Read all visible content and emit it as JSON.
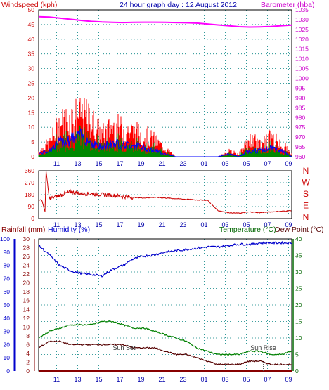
{
  "header": {
    "windspeed_label": "Windspeed (kph)",
    "title": "24 hour graph day : 12 August 2012",
    "barometer_label": "Barometer (hba)"
  },
  "colors": {
    "gust": "#ff0000",
    "avg_wind": "#0000ff",
    "wind_green": "#008800",
    "barometer": "#ff00ff",
    "direction": "#cc0000",
    "humidity": "#0000cc",
    "temperature": "#008000",
    "dewpoint": "#550000",
    "rain": "#880000",
    "grid": "#008080",
    "axis_red": "#cc0000",
    "axis_magenta": "#cc00cc",
    "axis_blue": "#0000cc",
    "axis_green": "#006600"
  },
  "x_ticks": [
    "11",
    "13",
    "15",
    "17",
    "19",
    "21",
    "23",
    "01",
    "03",
    "05",
    "07",
    "09"
  ],
  "chart_data": [
    {
      "type": "line",
      "name": "wind-barometer",
      "title": "24 hour graph day : 12 August 2012",
      "ylabel": "Windspeed (kph)",
      "y2label": "Barometer (hba)",
      "ylim": [
        0,
        50
      ],
      "y2lim": [
        960,
        1035
      ],
      "yticks": [
        0,
        5,
        10,
        15,
        20,
        25,
        30,
        35,
        40,
        45,
        50
      ],
      "y2ticks": [
        960,
        965,
        970,
        975,
        980,
        985,
        990,
        995,
        1000,
        1005,
        1010,
        1015,
        1020,
        1025,
        1030,
        1035
      ],
      "x_hours": [
        0,
        1,
        2,
        3,
        4,
        5,
        6,
        7,
        8,
        9,
        10,
        11,
        12,
        13,
        14,
        15,
        16,
        17,
        18,
        19,
        20,
        21,
        22,
        23,
        24
      ],
      "barometer": [
        1031.5,
        1031.3,
        1030.8,
        1030.2,
        1029.6,
        1029.1,
        1028.8,
        1028.6,
        1028.5,
        1028.6,
        1028.7,
        1028.7,
        1028.6,
        1028.5,
        1028.4,
        1028.2,
        1027.8,
        1027.3,
        1026.9,
        1026.4,
        1026.2,
        1026.3,
        1026.5,
        1026.9,
        1027.2
      ],
      "gust": [
        2,
        5,
        12,
        14,
        16,
        13,
        8,
        11,
        10,
        9,
        8,
        6,
        3,
        0,
        0,
        0,
        0,
        0,
        2,
        1,
        6,
        5,
        7,
        5,
        1
      ],
      "avg_wind": [
        1,
        2,
        5,
        6,
        7,
        5,
        3,
        5,
        4,
        4,
        3,
        2,
        1,
        0,
        0,
        0,
        0,
        0,
        1,
        0,
        2,
        2,
        3,
        2,
        0
      ],
      "gust_max": 20
    },
    {
      "type": "line",
      "name": "wind-direction",
      "yticks": [
        0,
        90,
        180,
        270,
        360
      ],
      "ylim": [
        0,
        360
      ],
      "compass": [
        "N",
        "W",
        "S",
        "E",
        "N"
      ],
      "x_hours": [
        0,
        0.3,
        0.6,
        0.7,
        1,
        2,
        3,
        4,
        5,
        6,
        7,
        8,
        9,
        10,
        11,
        12,
        13,
        14,
        15,
        16,
        17,
        18,
        19,
        20,
        21,
        22,
        23,
        24
      ],
      "direction": [
        140,
        140,
        50,
        360,
        150,
        175,
        200,
        190,
        185,
        180,
        175,
        165,
        160,
        155,
        160,
        155,
        150,
        145,
        140,
        138,
        60,
        45,
        40,
        50,
        45,
        50,
        55,
        60
      ]
    },
    {
      "type": "line",
      "name": "temp-humidity",
      "rain_label": "Rainfall (mm)",
      "humidity_label": "Humidity (%)",
      "temp_label": "Temperature (°C)",
      "dew_label": "Dew Point (°C)",
      "rain_ticks": [
        0,
        2,
        4,
        6,
        8,
        10,
        12,
        14,
        16,
        18,
        20,
        22,
        24,
        26,
        28,
        30
      ],
      "humidity_ticks": [
        0,
        10,
        20,
        30,
        40,
        50,
        60,
        70,
        80,
        90,
        100
      ],
      "temp_ticks": [
        0,
        5,
        10,
        15,
        20,
        25,
        30,
        35,
        40
      ],
      "ylim": [
        0,
        40
      ],
      "x_hours": [
        0,
        1,
        2,
        3,
        4,
        5,
        6,
        7,
        8,
        9,
        10,
        11,
        12,
        13,
        14,
        15,
        16,
        17,
        18,
        19,
        20,
        21,
        22,
        23,
        24
      ],
      "humidity": [
        95,
        88,
        80,
        76,
        74,
        73,
        72,
        77,
        80,
        85,
        87,
        88,
        90,
        91,
        92,
        93,
        94,
        94,
        95,
        96,
        96,
        97,
        97,
        97,
        97
      ],
      "temperature": [
        10,
        12,
        13,
        14,
        14,
        14,
        15,
        15,
        14,
        13,
        13,
        12,
        11,
        10,
        9,
        7,
        6,
        5,
        5,
        5,
        6,
        6,
        5,
        5,
        6
      ],
      "dewpoint": [
        7,
        9,
        9,
        8,
        8,
        8,
        8,
        8,
        8,
        7,
        7,
        7,
        6,
        5,
        5,
        4,
        3,
        2,
        2,
        2,
        3,
        3,
        2,
        2,
        2
      ],
      "rain": [
        0,
        0,
        0,
        0,
        0,
        0,
        0,
        0,
        0,
        0,
        0,
        0,
        0,
        0,
        0,
        0,
        0,
        0,
        0,
        0,
        0,
        0,
        0,
        0,
        0
      ],
      "annotations": [
        {
          "text": "Sun Set",
          "hour": 8.1
        },
        {
          "text": "Sun Rise",
          "hour": 21.3
        }
      ]
    }
  ]
}
